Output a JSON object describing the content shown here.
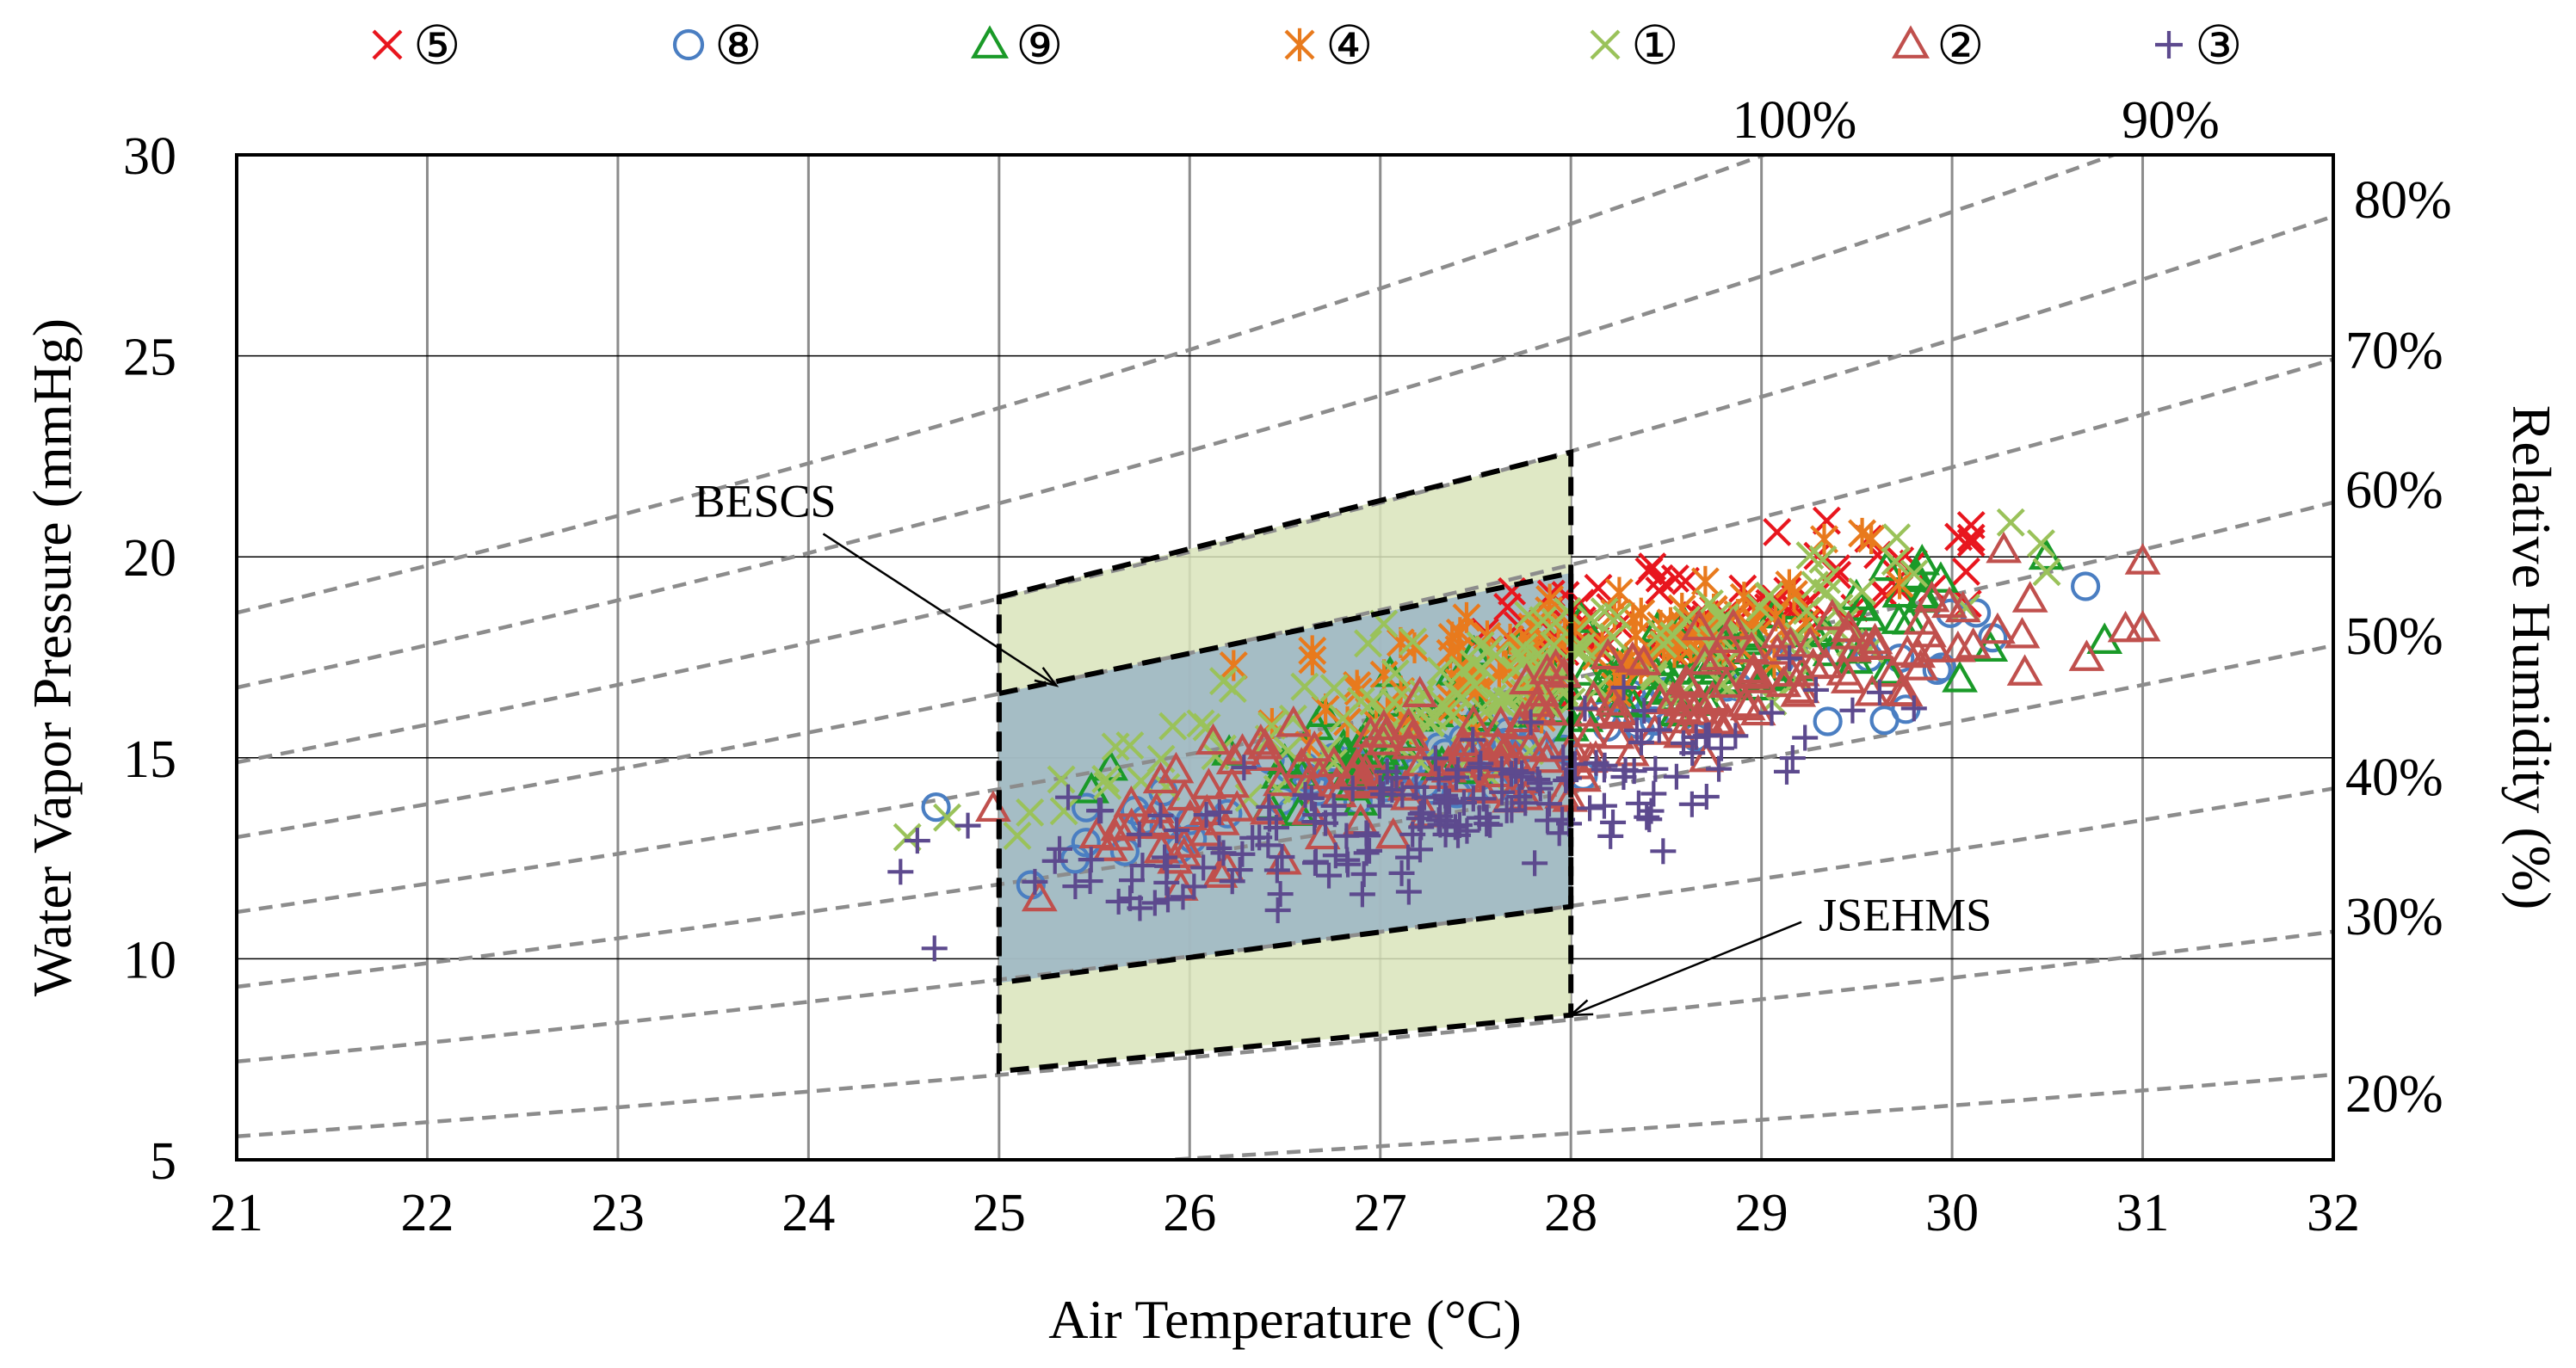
{
  "chart_data": {
    "type": "scatter",
    "xlabel": "Air Temperature (°C)",
    "ylabel": "Water Vapor Pressure (mmHg)",
    "y2label": "Relative Humidity (%)",
    "xlim": [
      21,
      32
    ],
    "ylim": [
      5,
      30
    ],
    "x_ticks": [
      "21",
      "22",
      "23",
      "24",
      "25",
      "26",
      "27",
      "28",
      "29",
      "30",
      "31",
      "32"
    ],
    "y_ticks": [
      "5",
      "10",
      "15",
      "20",
      "25",
      "30"
    ],
    "grid": true,
    "legend_position": "top",
    "rh_curves": [
      {
        "label": "100%",
        "rh": 100
      },
      {
        "label": "90%",
        "rh": 90
      },
      {
        "label": "80%",
        "rh": 80
      },
      {
        "label": "70%",
        "rh": 70
      },
      {
        "label": "60%",
        "rh": 60
      },
      {
        "label": "50%",
        "rh": 50
      },
      {
        "label": "40%",
        "rh": 40
      },
      {
        "label": "30%",
        "rh": 30
      },
      {
        "label": "20%",
        "rh": 20
      }
    ],
    "zones": [
      {
        "name": "BESCS",
        "polygon": [
          [
            25,
            16.6
          ],
          [
            28,
            19.6
          ],
          [
            28,
            11.3
          ],
          [
            25,
            9.4
          ]
        ],
        "fill": "#9bb5c4"
      },
      {
        "name": "JSEHMS",
        "polygon": [
          [
            25,
            19.0
          ],
          [
            28,
            22.6
          ],
          [
            28,
            8.6
          ],
          [
            25,
            7.2
          ]
        ],
        "fill": "#d9e4bb"
      }
    ],
    "annotations": [
      {
        "text": "BESCS",
        "x": 23.4,
        "y": 21.0,
        "arrow_to": [
          25.3,
          16.8
        ]
      },
      {
        "text": "JSEHMS",
        "x": 29.3,
        "y": 10.7,
        "arrow_to": [
          28.0,
          8.6
        ]
      }
    ],
    "series": [
      {
        "name": "⑤",
        "marker": "x",
        "color": "#e8161e",
        "seed": 5,
        "count": 85,
        "x_range": [
          26.8,
          30.1
        ],
        "slope": 1.0,
        "intercept": -10.0,
        "spread": 2.2
      },
      {
        "name": "⑧",
        "marker": "circle",
        "color": "#4a7ec2",
        "seed": 8,
        "count": 80,
        "x_range": [
          23.3,
          30.7
        ],
        "slope": 1.05,
        "intercept": -13.8,
        "spread": 1.8
      },
      {
        "name": "⑨",
        "marker": "triangle",
        "color": "#1a9a28",
        "seed": 9,
        "count": 130,
        "x_range": [
          24.8,
          30.8
        ],
        "slope": 1.05,
        "intercept": -12.8,
        "spread": 2.2
      },
      {
        "name": "④",
        "marker": "asterisk",
        "color": "#e87a1d",
        "seed": 4,
        "count": 110,
        "x_range": [
          25.8,
          29.8
        ],
        "slope": 1.05,
        "intercept": -11.8,
        "spread": 2.4
      },
      {
        "name": "①",
        "marker": "x",
        "color": "#9ac25a",
        "seed": 1,
        "count": 160,
        "x_range": [
          23.6,
          30.5
        ],
        "slope": 1.1,
        "intercept": -13.6,
        "spread": 2.4
      },
      {
        "name": "②",
        "marker": "triangle",
        "color": "#c0504d",
        "seed": 2,
        "count": 200,
        "x_range": [
          23.8,
          31.0
        ],
        "slope": 1.05,
        "intercept": -13.7,
        "spread": 2.4
      },
      {
        "name": "③",
        "marker": "plus",
        "color": "#5d4a8e",
        "seed": 3,
        "count": 180,
        "x_range": [
          23.5,
          29.8
        ],
        "slope": 0.9,
        "intercept": -10.8,
        "spread": 2.4
      }
    ]
  }
}
